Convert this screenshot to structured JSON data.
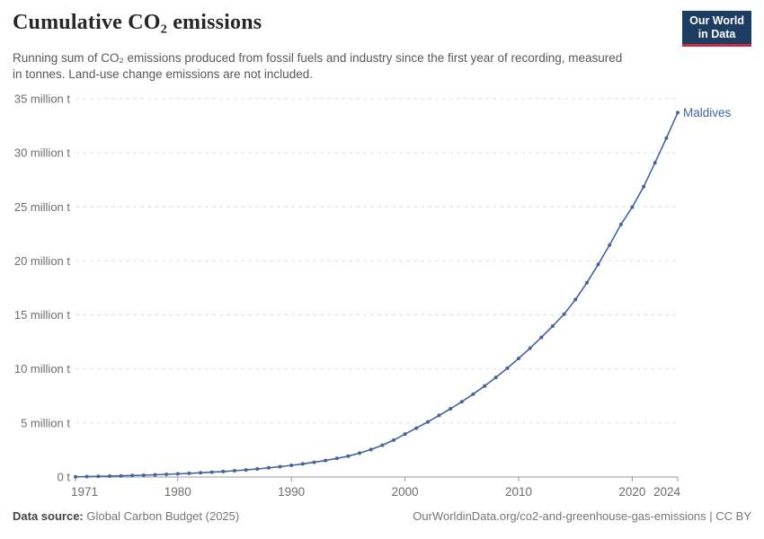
{
  "header": {
    "title": "Cumulative CO₂ emissions",
    "subtitle": "Running sum of CO₂ emissions produced from fossil fuels and industry since the first year of recording, measured in tonnes. Land-use change emissions are not included.",
    "logo": {
      "line1": "Our World",
      "line2": "in Data"
    }
  },
  "chart_data": {
    "type": "line",
    "title": "Cumulative CO₂ emissions",
    "entity": "Maldives",
    "series_label": "Maldives",
    "unit": "million t",
    "x": [
      1971,
      1972,
      1973,
      1974,
      1975,
      1976,
      1977,
      1978,
      1979,
      1980,
      1981,
      1982,
      1983,
      1984,
      1985,
      1986,
      1987,
      1988,
      1989,
      1990,
      1991,
      1992,
      1993,
      1994,
      1995,
      1996,
      1997,
      1998,
      1999,
      2000,
      2001,
      2002,
      2003,
      2004,
      2005,
      2006,
      2007,
      2008,
      2009,
      2010,
      2011,
      2012,
      2013,
      2014,
      2015,
      2016,
      2017,
      2018,
      2019,
      2020,
      2021,
      2022,
      2023,
      2024
    ],
    "values": [
      0.02,
      0.04,
      0.06,
      0.08,
      0.11,
      0.14,
      0.17,
      0.21,
      0.25,
      0.29,
      0.34,
      0.39,
      0.45,
      0.51,
      0.58,
      0.66,
      0.75,
      0.85,
      0.96,
      1.08,
      1.21,
      1.36,
      1.53,
      1.72,
      1.93,
      2.21,
      2.54,
      2.94,
      3.42,
      3.97,
      4.52,
      5.1,
      5.7,
      6.32,
      6.97,
      7.67,
      8.42,
      9.22,
      10.07,
      10.97,
      11.92,
      12.92,
      13.97,
      15.07,
      16.42,
      17.97,
      19.67,
      21.47,
      23.37,
      24.97,
      26.87,
      29.07,
      31.37,
      33.72
    ],
    "xlim": [
      1971,
      2024
    ],
    "ylim": [
      0,
      35
    ],
    "x_ticks": [
      1971,
      1980,
      1990,
      2000,
      2010,
      2020,
      2024
    ],
    "y_ticks": [
      0,
      5,
      10,
      15,
      20,
      25,
      30,
      35
    ],
    "y_tick_labels": [
      "0 t",
      "5 million t",
      "10 million t",
      "15 million t",
      "20 million t",
      "25 million t",
      "30 million t",
      "35 million t"
    ],
    "grid": "horizontal-dashed",
    "legend_position": "end-of-line",
    "colors": {
      "line": "#44639f",
      "marker": "#44639f",
      "entity_label": "#3d649c",
      "gridline": "#e0e0e0",
      "axis": "#999999",
      "tick_label": "#6e6e6e"
    }
  },
  "footer": {
    "source_label": "Data source:",
    "source_value": "Global Carbon Budget (2025)",
    "link": "OurWorldinData.org/co2-and-greenhouse-gas-emissions | CC BY"
  }
}
